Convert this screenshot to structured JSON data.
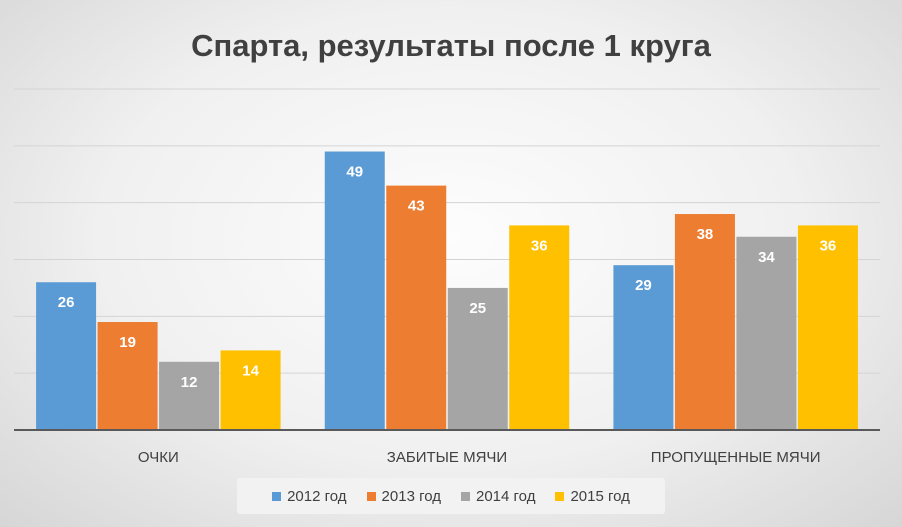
{
  "chart_data": {
    "type": "bar",
    "title": "Спарта, результаты после 1 круга",
    "xlabel": "",
    "ylabel": "",
    "categories": [
      "ОЧКИ",
      "ЗАБИТЫЕ МЯЧИ",
      "ПРОПУЩЕННЫЕ МЯЧИ"
    ],
    "series": [
      {
        "name": "2012 год",
        "color": "#5b9bd5",
        "values": [
          26,
          49,
          29
        ]
      },
      {
        "name": "2013 год",
        "color": "#ed7d31",
        "values": [
          19,
          43,
          38
        ]
      },
      {
        "name": "2014 год",
        "color": "#a5a5a5",
        "values": [
          12,
          25,
          34
        ]
      },
      {
        "name": "2015 год",
        "color": "#ffc000",
        "values": [
          14,
          36,
          36
        ]
      }
    ],
    "ylim": [
      0,
      60
    ],
    "gridlines": true,
    "y_tick_labels_shown": false,
    "data_labels": true,
    "legend_position": "bottom"
  }
}
